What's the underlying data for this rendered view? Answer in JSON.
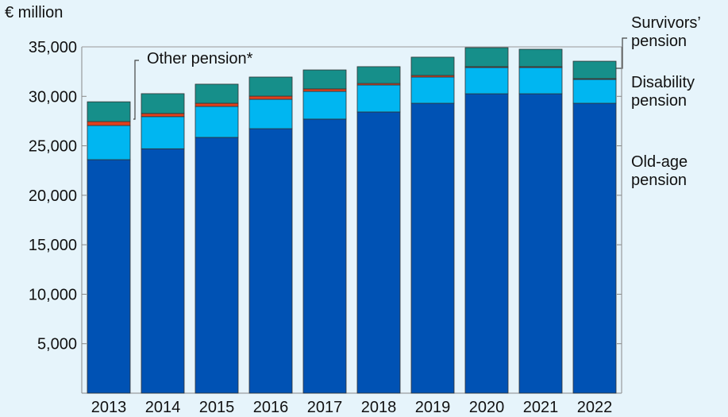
{
  "chart_data": {
    "type": "stacked_bar",
    "y_axis_label": "€ million",
    "categories": [
      "2013",
      "2014",
      "2015",
      "2016",
      "2017",
      "2018",
      "2019",
      "2020",
      "2021",
      "2022"
    ],
    "series": [
      {
        "name": "Old-age pension",
        "color": "#0052b4",
        "values": [
          23600,
          24700,
          25850,
          26730,
          27700,
          28420,
          29300,
          30260,
          30260,
          29300
        ]
      },
      {
        "name": "Disability pension",
        "color": "#00b6f1",
        "values": [
          3450,
          3250,
          3130,
          2970,
          2800,
          2730,
          2650,
          2650,
          2650,
          2410
        ]
      },
      {
        "name": "Other pension*",
        "color": "#e0401c",
        "values": [
          400,
          320,
          320,
          320,
          250,
          150,
          160,
          90,
          90,
          80
        ]
      },
      {
        "name": "Survivors’ pension",
        "color": "#168f8a",
        "values": [
          2000,
          2000,
          1930,
          1930,
          1920,
          1700,
          1850,
          1920,
          1760,
          1760
        ]
      }
    ],
    "ylim": [
      0,
      35000
    ],
    "yticks": [
      {
        "value": 5000,
        "label": "5,000"
      },
      {
        "value": 10000,
        "label": "10,000"
      },
      {
        "value": 15000,
        "label": "15,000"
      },
      {
        "value": 20000,
        "label": "20,000"
      },
      {
        "value": 25000,
        "label": "25,000"
      },
      {
        "value": 30000,
        "label": "30,000"
      },
      {
        "value": 35000,
        "label": "35,000"
      }
    ],
    "grid": false
  }
}
